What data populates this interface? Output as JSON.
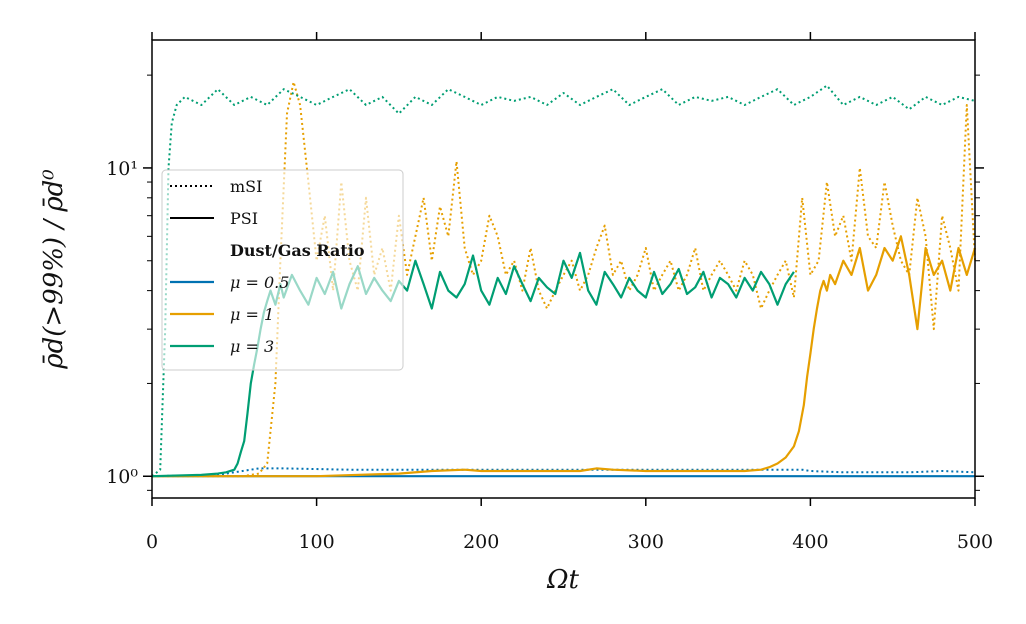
{
  "chart_data": {
    "type": "line",
    "title": "",
    "xlabel": "Ωt",
    "ylabel": "ρ̄d(>99%) / ρ̄d⁰",
    "yscale": "log",
    "xlim": [
      0,
      500
    ],
    "ylim": [
      0.85,
      26
    ],
    "xticks": [
      0,
      100,
      200,
      300,
      400,
      500
    ],
    "xtick_labels": [
      "0",
      "100",
      "200",
      "300",
      "400",
      "500"
    ],
    "yticks": [
      1,
      10
    ],
    "ytick_labels": [
      "10⁰",
      "10¹"
    ],
    "grid": false,
    "legend": {
      "position": "center-left",
      "style_entries": [
        {
          "label": "mSI",
          "linestyle": "dotted"
        },
        {
          "label": "PSI",
          "linestyle": "solid"
        }
      ],
      "title": "Dust/Gas Ratio",
      "color_entries": [
        {
          "label": "μ = 0.5",
          "color": "#0072B2"
        },
        {
          "label": "μ = 1",
          "color": "#E69F00"
        },
        {
          "label": "μ = 3",
          "color": "#009E73"
        }
      ]
    },
    "series": [
      {
        "name": "mSI, μ = 0.5",
        "color": "#0072B2",
        "linestyle": "dotted",
        "x": [
          0,
          40,
          55,
          65,
          80,
          120,
          200,
          250,
          300,
          350,
          380,
          395,
          400,
          420,
          440,
          460,
          480,
          500
        ],
        "y": [
          1.0,
          1.01,
          1.04,
          1.06,
          1.06,
          1.05,
          1.05,
          1.05,
          1.05,
          1.05,
          1.05,
          1.05,
          1.04,
          1.03,
          1.03,
          1.03,
          1.04,
          1.03
        ]
      },
      {
        "name": "PSI, μ = 0.5",
        "color": "#0072B2",
        "linestyle": "solid",
        "x": [
          0,
          100,
          200,
          300,
          400,
          500
        ],
        "y": [
          1.0,
          1.0,
          1.0,
          1.0,
          1.0,
          1.0
        ]
      },
      {
        "name": "mSI, μ = 1",
        "color": "#E69F00",
        "linestyle": "dotted",
        "x": [
          0,
          55,
          65,
          70,
          75,
          78,
          82,
          86,
          90,
          95,
          100,
          105,
          110,
          115,
          120,
          125,
          130,
          135,
          140,
          145,
          150,
          155,
          160,
          165,
          170,
          175,
          180,
          185,
          190,
          195,
          200,
          205,
          210,
          215,
          220,
          225,
          230,
          235,
          240,
          245,
          250,
          255,
          260,
          265,
          270,
          275,
          280,
          285,
          290,
          295,
          300,
          305,
          310,
          315,
          320,
          325,
          330,
          335,
          340,
          345,
          350,
          355,
          360,
          365,
          370,
          375,
          380,
          385,
          390,
          395,
          400,
          405,
          410,
          415,
          420,
          425,
          430,
          435,
          440,
          445,
          450,
          455,
          460,
          465,
          470,
          475,
          480,
          485,
          490,
          495,
          500
        ],
        "y": [
          1.0,
          1.0,
          1.02,
          1.1,
          2.0,
          5.0,
          15.0,
          19.0,
          16.0,
          9.0,
          5.0,
          7.0,
          4.0,
          9.0,
          5.0,
          4.0,
          8.0,
          4.5,
          5.5,
          4.0,
          7.0,
          4.5,
          6.0,
          8.0,
          5.0,
          7.5,
          6.0,
          10.5,
          5.5,
          4.5,
          5.0,
          7.0,
          6.0,
          4.5,
          5.0,
          4.0,
          5.5,
          4.0,
          3.5,
          4.0,
          4.5,
          5.0,
          4.0,
          4.5,
          5.5,
          6.5,
          4.5,
          5.0,
          4.0,
          4.5,
          5.5,
          4.0,
          4.5,
          5.0,
          4.0,
          4.5,
          5.5,
          4.0,
          4.5,
          5.0,
          4.5,
          4.0,
          5.0,
          4.5,
          3.5,
          4.0,
          4.5,
          5.0,
          3.8,
          8.0,
          4.5,
          5.0,
          9.0,
          6.0,
          7.0,
          5.0,
          10.0,
          6.0,
          5.5,
          9.0,
          6.5,
          5.0,
          4.5,
          8.0,
          6.0,
          3.0,
          7.0,
          5.5,
          4.0,
          16.0,
          5.0
        ]
      },
      {
        "name": "PSI, μ = 1",
        "color": "#E69F00",
        "linestyle": "solid",
        "x": [
          0,
          100,
          150,
          170,
          190,
          200,
          220,
          260,
          270,
          280,
          300,
          340,
          360,
          370,
          375,
          380,
          385,
          390,
          393,
          396,
          398,
          400,
          402,
          404,
          406,
          408,
          410,
          412,
          415,
          420,
          425,
          430,
          435,
          440,
          445,
          450,
          455,
          460,
          465,
          470,
          475,
          480,
          485,
          490,
          495,
          500
        ],
        "y": [
          1.0,
          1.0,
          1.02,
          1.04,
          1.05,
          1.04,
          1.04,
          1.04,
          1.06,
          1.05,
          1.04,
          1.04,
          1.04,
          1.05,
          1.07,
          1.1,
          1.15,
          1.25,
          1.4,
          1.7,
          2.1,
          2.5,
          3.0,
          3.5,
          4.0,
          4.3,
          4.0,
          4.5,
          4.2,
          5.0,
          4.5,
          5.5,
          4.0,
          4.5,
          5.5,
          5.0,
          6.0,
          4.5,
          3.0,
          5.5,
          4.5,
          5.0,
          4.0,
          5.5,
          4.5,
          5.5
        ]
      },
      {
        "name": "mSI, μ = 3",
        "color": "#009E73",
        "linestyle": "dotted",
        "x": [
          0,
          5,
          8,
          10,
          12,
          15,
          20,
          30,
          40,
          50,
          60,
          70,
          80,
          90,
          100,
          110,
          120,
          130,
          140,
          150,
          160,
          170,
          180,
          190,
          200,
          210,
          220,
          230,
          240,
          250,
          260,
          270,
          280,
          290,
          300,
          310,
          320,
          330,
          340,
          350,
          360,
          370,
          380,
          390,
          400,
          410,
          420,
          430,
          440,
          450,
          460,
          470,
          480,
          490,
          500
        ],
        "y": [
          1.0,
          1.05,
          3.0,
          10.0,
          14.0,
          16.0,
          17.0,
          16.0,
          18.0,
          16.0,
          17.0,
          16.0,
          18.0,
          17.0,
          16.0,
          17.0,
          18.0,
          16.0,
          17.0,
          15.0,
          17.0,
          16.0,
          18.0,
          17.0,
          16.0,
          17.0,
          16.5,
          17.0,
          16.0,
          17.5,
          16.0,
          17.0,
          18.0,
          16.0,
          17.0,
          18.0,
          16.0,
          17.0,
          16.5,
          17.0,
          16.0,
          17.0,
          18.0,
          16.0,
          17.0,
          18.5,
          16.0,
          17.0,
          16.0,
          17.0,
          15.5,
          17.0,
          16.0,
          17.0,
          16.5
        ]
      },
      {
        "name": "PSI, μ = 3",
        "color": "#009E73",
        "linestyle": "solid",
        "x": [
          0,
          30,
          40,
          45,
          50,
          52,
          54,
          56,
          58,
          60,
          62,
          64,
          66,
          68,
          70,
          72,
          75,
          78,
          80,
          85,
          90,
          95,
          100,
          105,
          110,
          115,
          120,
          125,
          130,
          135,
          140,
          145,
          150,
          155,
          160,
          165,
          170,
          175,
          180,
          185,
          190,
          195,
          200,
          205,
          210,
          215,
          220,
          225,
          230,
          235,
          240,
          245,
          250,
          255,
          260,
          265,
          270,
          275,
          280,
          285,
          290,
          295,
          300,
          305,
          310,
          315,
          320,
          325,
          330,
          335,
          340,
          345,
          350,
          355,
          360,
          365,
          370,
          375,
          380,
          385,
          390
        ],
        "y": [
          1.0,
          1.01,
          1.02,
          1.03,
          1.05,
          1.1,
          1.2,
          1.3,
          1.6,
          2.0,
          2.3,
          2.6,
          3.0,
          3.4,
          3.7,
          4.0,
          3.6,
          4.2,
          3.8,
          4.5,
          4.0,
          3.6,
          4.4,
          3.9,
          4.6,
          3.5,
          4.2,
          4.8,
          3.9,
          4.4,
          4.0,
          3.7,
          4.3,
          4.0,
          5.0,
          4.2,
          3.5,
          4.6,
          4.0,
          3.8,
          4.2,
          5.2,
          4.0,
          3.6,
          4.4,
          3.9,
          4.8,
          4.2,
          3.7,
          4.4,
          4.1,
          3.9,
          5.0,
          4.4,
          5.3,
          4.0,
          3.6,
          4.6,
          4.2,
          3.8,
          4.4,
          4.0,
          3.8,
          4.6,
          3.9,
          4.2,
          4.7,
          3.9,
          4.1,
          4.6,
          3.8,
          4.4,
          4.2,
          3.8,
          4.4,
          4.0,
          4.6,
          4.2,
          3.6,
          4.2,
          4.6
        ]
      }
    ]
  }
}
